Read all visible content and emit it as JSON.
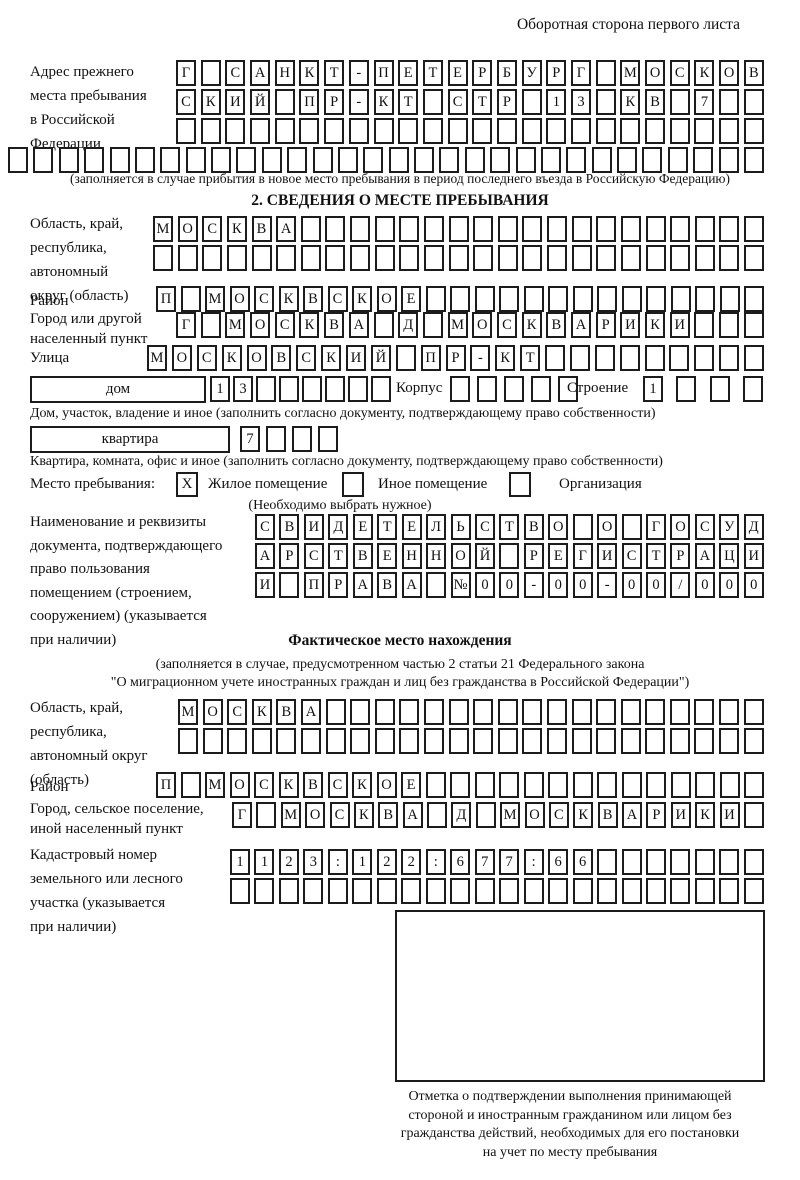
{
  "header": {
    "back_note": "Оборотная сторона первого листа"
  },
  "prev_address": {
    "label": "Адрес прежнего\nместа пребывания\nв Российской\nФедерации",
    "row1": {
      "boxes": 24,
      "text": "Г САНКТ-ПЕТЕРБУРГ МОСКОВ"
    },
    "row2": {
      "boxes": 24,
      "text": "СКИЙ ПР-КТ СТР 13 КВ 7"
    },
    "row3": {
      "boxes": 24,
      "text": ""
    },
    "row4": {
      "boxes": 30,
      "text": ""
    },
    "note": "(заполняется в случае прибытия в новое место пребывания в период последнего въезда в Российскую Федерацию)"
  },
  "section2": {
    "title": "2. СВЕДЕНИЯ О МЕСТЕ ПРЕБЫВАНИЯ",
    "region_label": "Область, край,\nреспублика,\nавтономный\nокруг (область)",
    "region_row1": {
      "boxes": 25,
      "text": "МОСКВА"
    },
    "region_row2": {
      "boxes": 25,
      "text": ""
    },
    "district_label": "Район",
    "district_row": {
      "boxes": 25,
      "text": "П МОСКВСКОЕ"
    },
    "city_label": "Город или другой\nнаселенный пункт",
    "city_row": {
      "boxes": 24,
      "text": "Г МОСКВА Д МОСКВАРИКИ"
    },
    "street_label": "Улица",
    "street_row": {
      "boxes": 25,
      "text": "МОСКОВСКИЙ ПР-КТ"
    },
    "house_box_label": "дом",
    "house_row": {
      "boxes": 8,
      "text": "13"
    },
    "korpus_label": "Корпус",
    "korpus_row": {
      "boxes": 5,
      "text": ""
    },
    "stroenie_label": "Строение",
    "stroenie_row": {
      "boxes": 4,
      "text": "1"
    },
    "house_note": "Дом, участок, владение и иное (заполнить согласно документу, подтверждающему право собственности)",
    "flat_box_label": "квартира",
    "flat_row": {
      "boxes": 4,
      "text": "7"
    },
    "flat_note": "Квартира, комната, офис и иное (заполнить согласно документу, подтверждающему право собственности)",
    "place_label": "Место пребывания:",
    "place_options": [
      {
        "label": "Жилое помещение",
        "mark": "X"
      },
      {
        "label": "Иное помещение",
        "mark": ""
      },
      {
        "label": "Организация",
        "mark": ""
      }
    ],
    "place_note": "(Необходимо выбрать нужное)",
    "doc_label": "Наименование и реквизиты\nдокумента, подтверждающего\nправо пользования\nпомещением (строением,\nсооружением) (указывается\nпри наличии)",
    "doc_row1": {
      "boxes": 21,
      "text": "СВИДЕТЕЛЬСТВО О ГОСУД"
    },
    "doc_row2": {
      "boxes": 21,
      "text": "АРСТВЕННОЙ РЕГИСТРАЦИ"
    },
    "doc_row3": {
      "boxes": 21,
      "text": "И ПРАВА №00-00-00/000"
    }
  },
  "actual_location": {
    "title": "Фактическое место нахождения",
    "note": "(заполняется в случае, предусмотренном частью 2 статьи 21 Федерального закона\n\"О миграционном учете иностранных граждан и лиц без гражданства в Российской Федерации\")",
    "region_label": "Область, край,\nреспублика,\nавтономный округ\n(область)",
    "region_row1": {
      "boxes": 24,
      "text": "МОСКВА"
    },
    "region_row2": {
      "boxes": 24,
      "text": ""
    },
    "district_label": "Район",
    "district_row": {
      "boxes": 25,
      "text": "П МОСКВСКОЕ"
    },
    "city_label": "Город, сельское поселение,\nиной населенный пункт",
    "city_row": {
      "boxes": 22,
      "text": "Г МОСКВА Д МОСКВАРИКИ"
    },
    "cadastre_label": "Кадастровый номер\nземельного или лесного\nучастка (указывается\nпри наличии)",
    "cadastre_row1": {
      "boxes": 22,
      "text": "1123:122:677:66"
    },
    "cadastre_row2": {
      "boxes": 22,
      "text": ""
    },
    "stamp_caption": "Отметка о подтверждении выполнения принимающей\nстороной и иностранным гражданином или лицом без\nгражданства действий, необходимых для его постановки\nна учет по месту пребывания"
  }
}
